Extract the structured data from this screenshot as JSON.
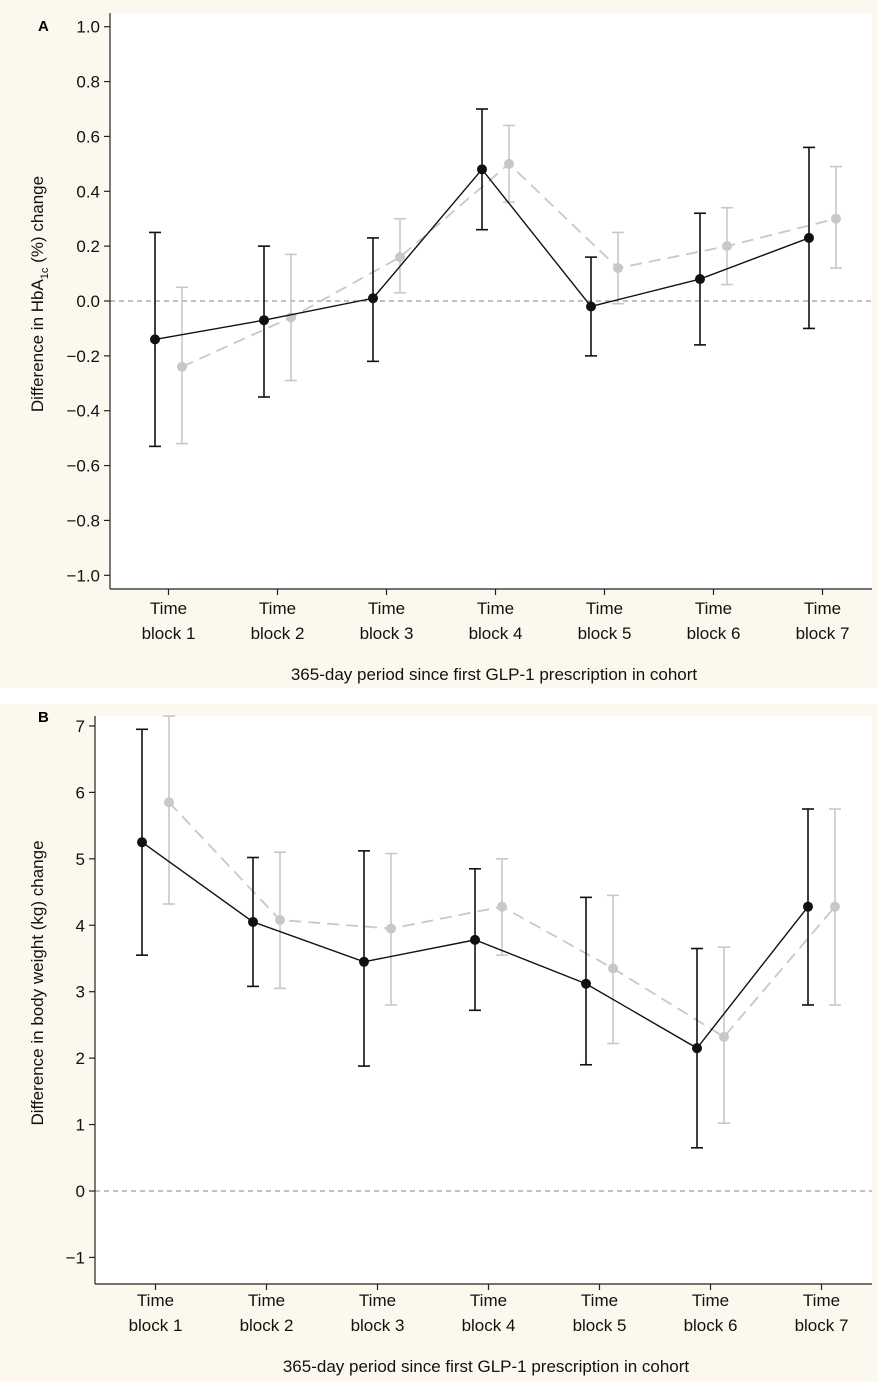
{
  "chart_data": [
    {
      "type": "line",
      "panel_label": "A",
      "ylabel_parts": {
        "pre": "Difference in HbA",
        "sub": "1c",
        "post": " (%) change"
      },
      "xlabel": "365-day period since first GLP-1 prescription in cohort",
      "categories": [
        [
          "Time",
          "block 1"
        ],
        [
          "Time",
          "block 2"
        ],
        [
          "Time",
          "block 3"
        ],
        [
          "Time",
          "block 4"
        ],
        [
          "Time",
          "block 5"
        ],
        [
          "Time",
          "block 6"
        ],
        [
          "Time",
          "block 7"
        ]
      ],
      "yticks": [
        "1.0",
        "0.8",
        "0.6",
        "0.4",
        "0.2",
        "0.0",
        "−0.2",
        "−0.4",
        "−0.6",
        "−0.8",
        "−1.0"
      ],
      "ytick_values": [
        1.0,
        0.8,
        0.6,
        0.4,
        0.2,
        0.0,
        -0.2,
        -0.4,
        -0.6,
        -0.8,
        -1.0
      ],
      "ylim": [
        -1.05,
        1.05
      ],
      "reference_line": 0,
      "series": [
        {
          "color": "#111111",
          "dashed": false,
          "values": [
            -0.14,
            -0.07,
            0.01,
            0.48,
            -0.02,
            0.08,
            0.23
          ],
          "lower": [
            -0.53,
            -0.35,
            -0.22,
            0.26,
            -0.2,
            -0.16,
            -0.1
          ],
          "upper": [
            0.25,
            0.2,
            0.23,
            0.7,
            0.16,
            0.32,
            0.56
          ]
        },
        {
          "color": "#c8c8c8",
          "dashed": true,
          "values": [
            -0.24,
            -0.06,
            0.16,
            0.5,
            0.12,
            0.2,
            0.3
          ],
          "lower": [
            -0.52,
            -0.29,
            0.03,
            0.36,
            -0.01,
            0.06,
            0.12
          ],
          "upper": [
            0.05,
            0.17,
            0.3,
            0.64,
            0.25,
            0.34,
            0.49
          ]
        }
      ]
    },
    {
      "type": "line",
      "panel_label": "B",
      "ylabel": "Difference in body weight (kg) change",
      "xlabel": "365-day period since first GLP-1 prescription in cohort",
      "categories": [
        [
          "Time",
          "block 1"
        ],
        [
          "Time",
          "block 2"
        ],
        [
          "Time",
          "block 3"
        ],
        [
          "Time",
          "block 4"
        ],
        [
          "Time",
          "block 5"
        ],
        [
          "Time",
          "block 6"
        ],
        [
          "Time",
          "block 7"
        ]
      ],
      "yticks": [
        "7",
        "6",
        "5",
        "4",
        "3",
        "2",
        "1",
        "0",
        "−1"
      ],
      "ytick_values": [
        7,
        6,
        5,
        4,
        3,
        2,
        1,
        0,
        -1
      ],
      "ylim": [
        -1.4,
        7.15
      ],
      "reference_line": 0,
      "series": [
        {
          "color": "#111111",
          "dashed": false,
          "values": [
            5.25,
            4.05,
            3.45,
            3.78,
            3.12,
            2.15,
            4.28
          ],
          "lower": [
            3.55,
            3.08,
            1.88,
            2.72,
            1.9,
            0.65,
            2.8
          ],
          "upper": [
            6.95,
            5.02,
            5.12,
            4.85,
            4.42,
            3.65,
            5.75
          ]
        },
        {
          "color": "#c8c8c8",
          "dashed": true,
          "values": [
            5.85,
            4.08,
            3.95,
            4.28,
            3.35,
            2.32,
            4.28
          ],
          "lower": [
            4.32,
            3.05,
            2.8,
            3.55,
            2.22,
            1.02,
            2.8
          ],
          "upper": [
            7.15,
            5.1,
            5.08,
            5.0,
            4.45,
            3.67,
            5.75
          ]
        }
      ]
    }
  ]
}
